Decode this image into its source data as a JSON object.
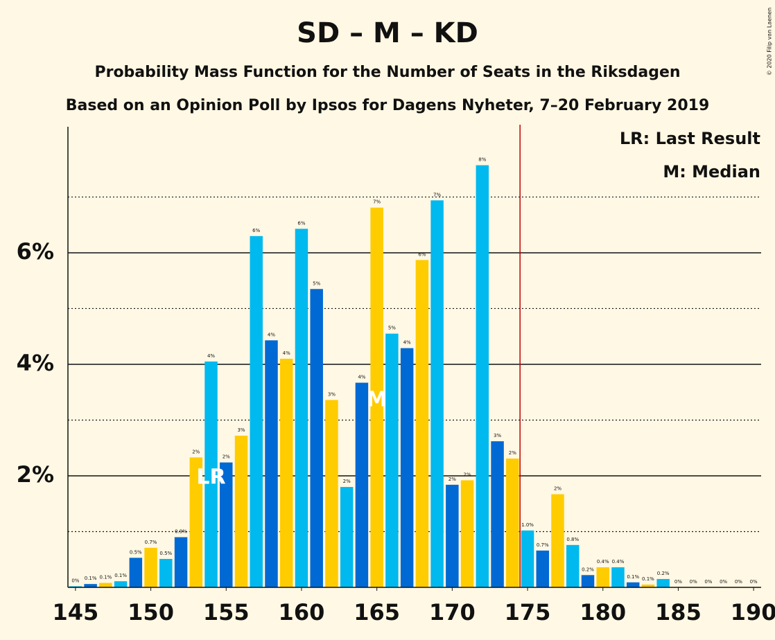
{
  "chart_data": {
    "type": "bar",
    "title": "SD – M – KD",
    "subtitle": "Probability Mass Function for the Number of Seats in the Riksdagen",
    "subtitle2": "Based on an Opinion Poll by Ipsos for Dagens Nyheter, 7–20 February 2019",
    "copyright": "© 2020 Filip van Laenen",
    "legend": [
      "LR: Last Result",
      "M: Median"
    ],
    "x": [
      145,
      146,
      147,
      148,
      149,
      150,
      151,
      152,
      153,
      154,
      155,
      156,
      157,
      158,
      159,
      160,
      161,
      162,
      163,
      164,
      165,
      166,
      167,
      168,
      169,
      170,
      171,
      172,
      173,
      174,
      175,
      176,
      177,
      178,
      179,
      180,
      181,
      182,
      183,
      184,
      185,
      186,
      187,
      188,
      189,
      190
    ],
    "values": [
      0.02,
      0.06,
      0.08,
      0.11,
      0.53,
      0.71,
      0.51,
      0.9,
      2.33,
      4.05,
      2.24,
      2.72,
      6.3,
      4.43,
      4.1,
      6.43,
      5.35,
      3.36,
      1.8,
      3.67,
      6.81,
      4.55,
      4.29,
      5.87,
      6.94,
      1.84,
      1.92,
      7.57,
      2.62,
      2.31,
      1.02,
      0.66,
      1.67,
      0.76,
      0.22,
      0.36,
      0.36,
      0.09,
      0.05,
      0.15,
      0,
      0,
      0,
      0,
      0,
      0
    ],
    "value_labels": [
      "0%",
      "0.1%",
      "0.1%",
      "0.1%",
      "0.5%",
      "0.7%",
      "0.5%",
      "0.9%",
      "2%",
      "4%",
      "2%",
      "3%",
      "6%",
      "4%",
      "4%",
      "6%",
      "5%",
      "3%",
      "2%",
      "4%",
      "7%",
      "5%",
      "4%",
      "6%",
      "7%",
      "2%",
      "2%",
      "8%",
      "3%",
      "2%",
      "1.0%",
      "0.7%",
      "2%",
      "0.8%",
      "0.2%",
      "0.4%",
      "0.4%",
      "0.1%",
      "0.1%",
      "0.2%",
      "0%",
      "0%",
      "0%",
      "0%",
      "0%",
      "0%"
    ],
    "color_cycle": [
      "#00B9EE",
      "#0069D3",
      "#FFCC00"
    ],
    "xlim": [
      144.5,
      190.5
    ],
    "xticks": [
      145,
      150,
      155,
      160,
      165,
      170,
      175,
      180,
      185,
      190
    ],
    "ylim": [
      0,
      8.26
    ],
    "yticks": [
      {
        "value": 2,
        "label": "2%"
      },
      {
        "value": 4,
        "label": "4%"
      },
      {
        "value": 6,
        "label": "6%"
      }
    ],
    "minor_yticks": [
      1,
      3,
      5,
      7
    ],
    "majority_line": 174.5,
    "majority_color": "#C00000",
    "last_result": {
      "x": 154,
      "label": "LR"
    },
    "median": {
      "x": 165,
      "label": "M"
    }
  }
}
